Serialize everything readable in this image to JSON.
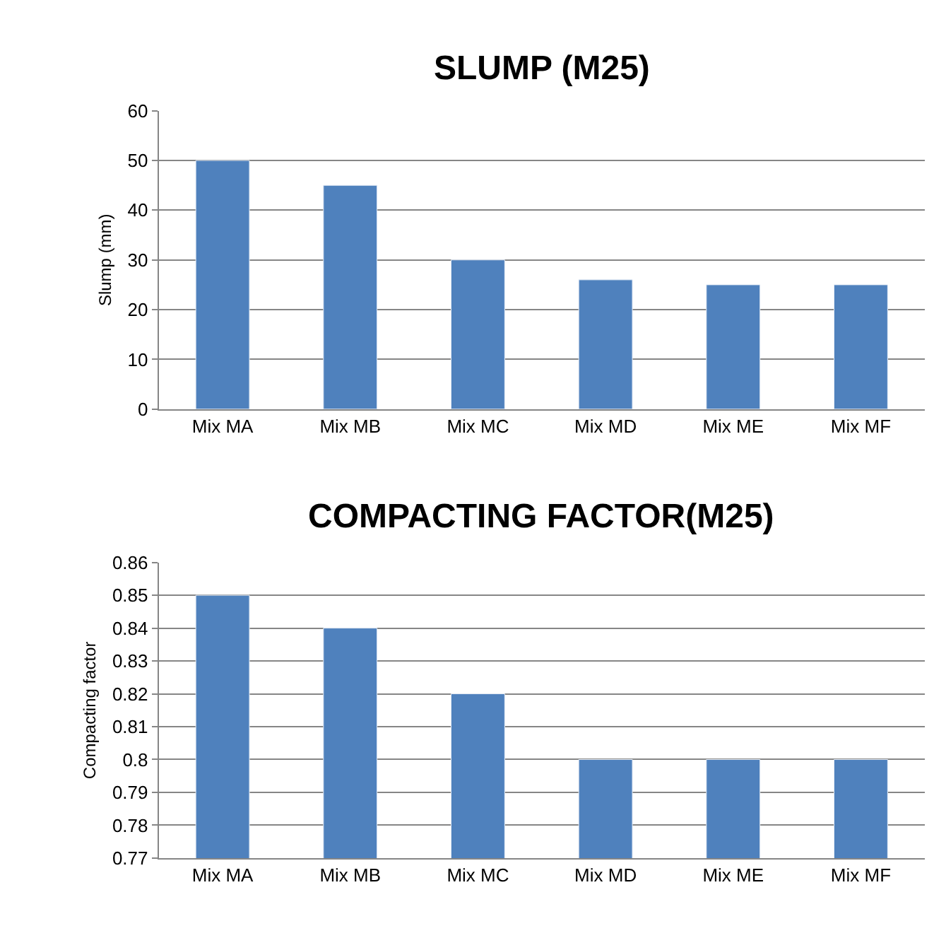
{
  "chart_data": [
    {
      "type": "bar",
      "title": "SLUMP (M25)",
      "ylabel": "Slump (mm)",
      "categories": [
        "Mix MA",
        "Mix MB",
        "Mix MC",
        "Mix MD",
        "Mix ME",
        "Mix MF"
      ],
      "values": [
        50,
        45,
        30,
        26,
        25,
        25
      ],
      "color": "#4f81bd",
      "ylim": [
        0,
        60
      ],
      "yticks": [
        0,
        10,
        20,
        30,
        40,
        50,
        60
      ],
      "grid": "y"
    },
    {
      "type": "bar",
      "title": "COMPACTING FACTOR(M25)",
      "ylabel": "Compacting factor",
      "categories": [
        "Mix MA",
        "Mix MB",
        "Mix MC",
        "Mix MD",
        "Mix ME",
        "Mix MF"
      ],
      "values": [
        0.85,
        0.84,
        0.82,
        0.8,
        0.8,
        0.8
      ],
      "color": "#4f81bd",
      "ylim": [
        0.77,
        0.86
      ],
      "yticks": [
        0.77,
        0.78,
        0.79,
        0.8,
        0.81,
        0.82,
        0.83,
        0.84,
        0.85,
        0.86
      ],
      "grid": "y"
    }
  ]
}
